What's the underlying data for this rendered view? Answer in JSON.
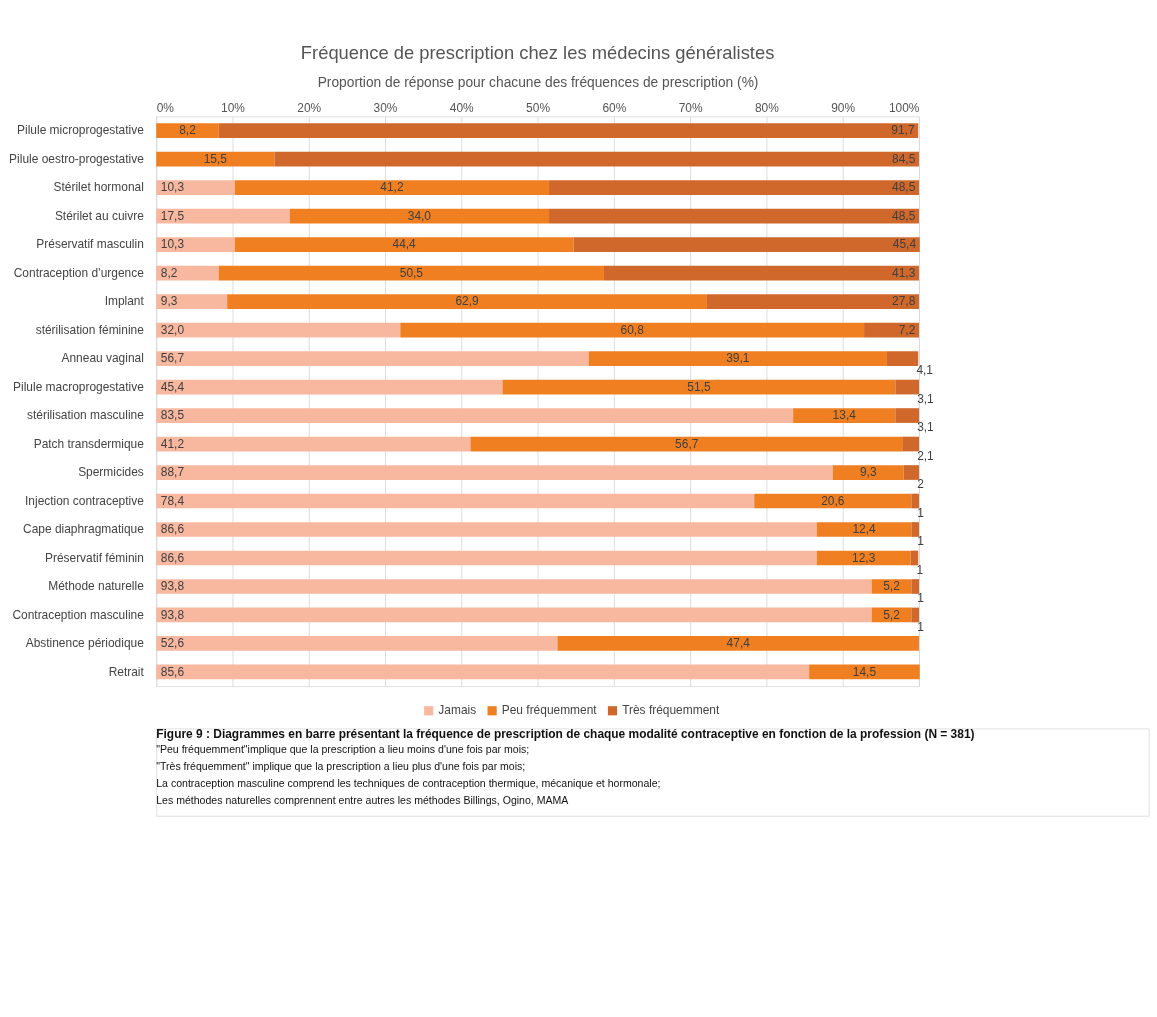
{
  "chart_data": {
    "type": "bar",
    "orientation": "horizontal",
    "stacked": true,
    "title": "Fréquence de prescription chez les médecins généralistes",
    "xlabel": "Proportion de réponse pour chacune des fréquences de prescription (%)",
    "categories": [
      "Pilule microprogestative",
      "Pilule oestro-progestative",
      "Stérilet hormonal",
      "Stérilet au cuivre",
      "Préservatif masculin",
      "Contraception d’urgence",
      "Implant",
      "stérilisation féminine",
      "Anneau vaginal",
      "Pilule macroprogestative",
      "stérilisation masculine",
      "Patch transdermique",
      "Spermicides",
      "Injection contraceptive",
      "Cape diaphragmatique",
      "Préservatif féminin",
      "Méthode naturelle",
      "Contraception masculine",
      "Abstinence périodique",
      "Retrait"
    ],
    "series": [
      {
        "name": "Jamais",
        "color": "#f8b8a0",
        "values": [
          null,
          null,
          10.3,
          17.5,
          10.3,
          8.2,
          9.3,
          32.0,
          56.7,
          45.4,
          83.5,
          41.2,
          88.7,
          78.4,
          86.6,
          86.6,
          93.8,
          93.8,
          52.6,
          85.6
        ],
        "value_labels": [
          null,
          null,
          "10,3",
          "17,5",
          "10,3",
          "8,2",
          "9,3",
          "32,0",
          "56,7",
          "45,4",
          "83,5",
          "41,2",
          "88,7",
          "78,4",
          "86,6",
          "86,6",
          "93,8",
          "93,8",
          "52,6",
          "85,6"
        ]
      },
      {
        "name": "Peu fréquemment",
        "color": "#f07f22",
        "values": [
          8.2,
          15.5,
          41.2,
          34.0,
          44.4,
          50.5,
          62.9,
          60.8,
          39.1,
          51.5,
          13.4,
          56.7,
          9.3,
          20.6,
          12.4,
          12.3,
          5.2,
          5.2,
          47.4,
          14.5
        ],
        "value_labels": [
          "8,2",
          "15,5",
          "41,2",
          "34,0",
          "44,4",
          "50,5",
          "62,9",
          "60,8",
          "39,1",
          "51,5",
          "13,4",
          "56,7",
          "9,3",
          "20,6",
          "12,4",
          "12,3",
          "5,2",
          "5,2",
          "47,4",
          "14,5"
        ]
      },
      {
        "name": "Très fréquemment",
        "color": "#d0682c",
        "values": [
          91.7,
          84.5,
          48.5,
          48.5,
          45.4,
          41.3,
          27.8,
          7.2,
          4.1,
          3.1,
          3.1,
          2.1,
          2,
          1,
          1,
          1,
          1,
          1,
          null,
          null
        ],
        "value_labels": [
          "91,7",
          "84,5",
          "48,5",
          "48,5",
          "45,4",
          "41,3",
          "27,8",
          "7,2",
          "4,1",
          "3,1",
          "3,1",
          "2,1",
          "2",
          "1",
          "1",
          "1",
          "1",
          "1",
          null,
          null
        ]
      }
    ],
    "xlim": [
      0,
      100
    ],
    "xticks": [
      {
        "value": 0,
        "label": "0%"
      },
      {
        "value": 10,
        "label": "10%"
      },
      {
        "value": 20,
        "label": "20%"
      },
      {
        "value": 30,
        "label": "30%"
      },
      {
        "value": 40,
        "label": "40%"
      },
      {
        "value": 50,
        "label": "50%"
      },
      {
        "value": 60,
        "label": "60%"
      },
      {
        "value": 70,
        "label": "70%"
      },
      {
        "value": 80,
        "label": "80%"
      },
      {
        "value": 90,
        "label": "90%"
      },
      {
        "value": 100,
        "label": "100%"
      }
    ],
    "grid": "x",
    "legend": "bottom",
    "annotations": [
      "Figure 9 : Diagrammes en barre présentant la fréquence de prescription de chaque modalité contraceptive en fonction de la profession (N = 381)",
      "\"Peu fréquemment\"implique que la prescription a lieu moins d'une fois par mois;",
      "\"Très fréquemment\" implique que la prescription a lieu plus d'une fois par mois;",
      "La contraception masculine comprend les techniques de contraception thermique, mécanique et hormonale;",
      "Les méthodes naturelles comprennent entre autres les méthodes Billings, Ogino, MAMA"
    ]
  }
}
